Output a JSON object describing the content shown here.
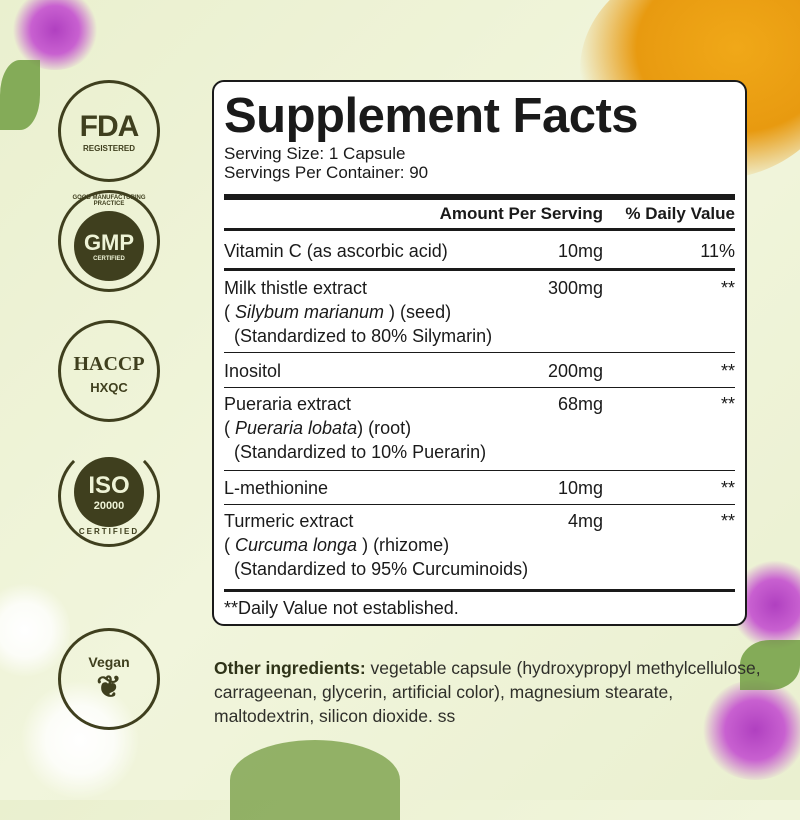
{
  "badges": [
    {
      "top": "FDA",
      "bottom": "REGISTERED"
    },
    {
      "ring": "GOOD MANUFACTURING PRACTICE",
      "top": "GMP",
      "bottom": "CERTIFIED"
    },
    {
      "top": "HACCP",
      "bottom": "HXQC"
    },
    {
      "top": "ISO",
      "middle": "20000",
      "bottom": "CERTIFIED"
    },
    {
      "top": "Vegan"
    }
  ],
  "facts": {
    "title": "Supplement Facts",
    "serving_size": "Serving Size: 1 Capsule",
    "servings_per_container": "Servings Per Container: 90",
    "col_amount": "Amount Per Serving",
    "col_dv": "% Daily Value",
    "rows": [
      {
        "name": "Vitamin C (as ascorbic acid)",
        "amount": "10mg",
        "dv": "11%"
      },
      {
        "name": "Milk thistle extract",
        "latin": "Silybum marianum",
        "part": "(seed)",
        "std": "(Standardized to 80% Silymarin)",
        "amount": "300mg",
        "dv": "**"
      },
      {
        "name": "Inositol",
        "amount": "200mg",
        "dv": "**"
      },
      {
        "name": "Pueraria extract",
        "latin": "Pueraria lobata",
        "part": "(root)",
        "std": "(Standardized to 10% Puerarin)",
        "amount": "68mg",
        "dv": "**"
      },
      {
        "name": "L-methionine",
        "amount": "10mg",
        "dv": "**"
      },
      {
        "name": "Turmeric extract",
        "latin": "Curcuma longa",
        "part": "(rhizome)",
        "std": "(Standardized to 95% Curcuminoids)",
        "amount": "4mg",
        "dv": "**"
      }
    ],
    "footnote": "**Daily Value not established."
  },
  "other": {
    "label": "Other ingredients:",
    "text": " vegetable capsule (hydroxypropyl methylcellulose, carrageenan, glycerin, artificial color), magnesium stearate, maltodextrin, silicon dioxide. ss"
  },
  "colors": {
    "badge": "#3f3f1e",
    "background": "#eef3d6",
    "turmeric": "#e89a10"
  }
}
